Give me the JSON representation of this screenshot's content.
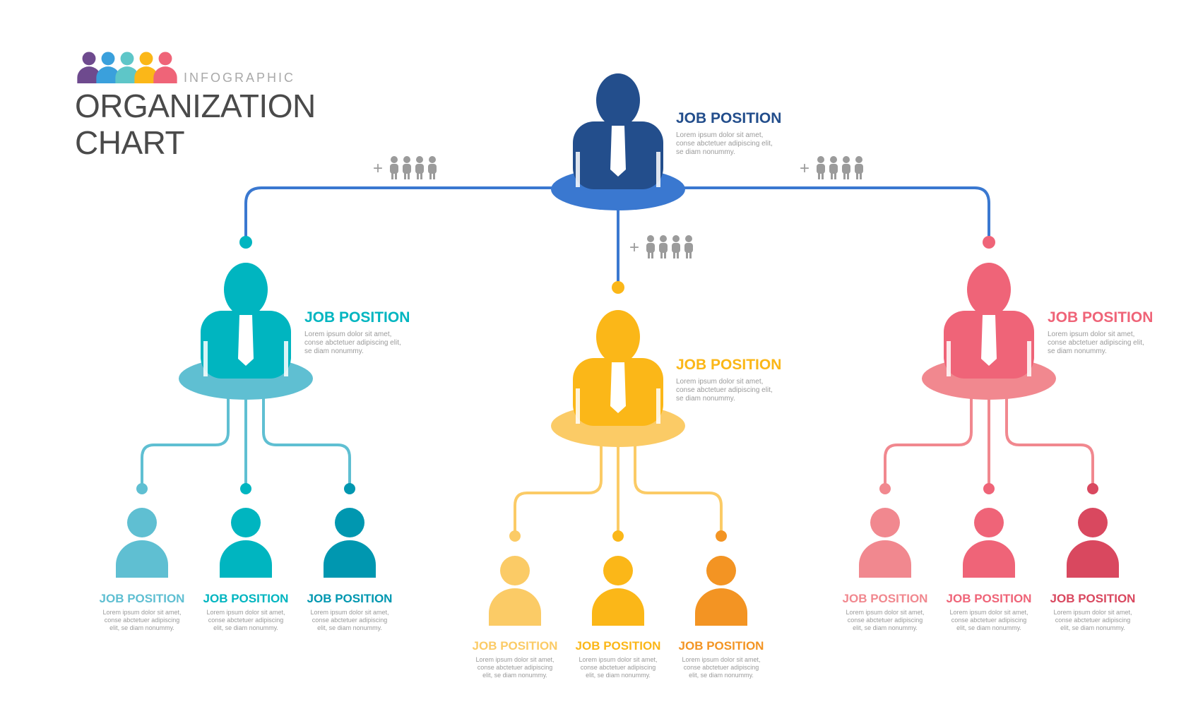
{
  "brand": {
    "subtitle": "INFOGRAPHIC",
    "title_line1": "ORGANIZATION",
    "title_line2": "CHART"
  },
  "colors": {
    "navy": "#234e8c",
    "blue_line": "#3a78d0",
    "teal": "#00b5c0",
    "teal_light": "#5fbfd2",
    "teal_dark": "#0097b0",
    "yellow": "#fbb718",
    "yellow_light": "#fbcb66",
    "orange": "#f39423",
    "pink": "#ef6478",
    "pink_light": "#f1888f",
    "red": "#d9485f",
    "gray_icon": "#9b9b9b",
    "team_purple": "#6e4a8e"
  },
  "plus_sign": "+",
  "nodes": {
    "top": {
      "title": "JOB POSITION",
      "desc": "Lorem ipsum dolor sit amet, conse abctetuer adipiscing elit, se diam nonummy."
    },
    "left": {
      "title": "JOB POSITION",
      "desc": "Lorem ipsum dolor sit amet, conse abctetuer adipiscing elit, se diam nonummy."
    },
    "middle": {
      "title": "JOB POSITION",
      "desc": "Lorem ipsum dolor sit amet, conse abctetuer adipiscing elit, se diam nonummy."
    },
    "right": {
      "title": "JOB POSITION",
      "desc": "Lorem ipsum dolor sit amet, conse abctetuer adipiscing elit, se diam nonummy."
    }
  },
  "leaves": {
    "left": [
      {
        "title": "JOB POSITION",
        "desc": "Lorem ipsum dolor sit amet, conse abctetuer adipiscing elit, se diam nonummy."
      },
      {
        "title": "JOB POSITION",
        "desc": "Lorem ipsum dolor sit amet, conse abctetuer adipiscing elit, se diam nonummy."
      },
      {
        "title": "JOB POSITION",
        "desc": "Lorem ipsum dolor sit amet, conse abctetuer adipiscing elit, se diam nonummy."
      }
    ],
    "middle": [
      {
        "title": "JOB POSITION",
        "desc": "Lorem ipsum dolor sit amet, conse abctetuer adipiscing elit, se diam nonummy."
      },
      {
        "title": "JOB POSITION",
        "desc": "Lorem ipsum dolor sit amet, conse abctetuer adipiscing elit, se diam nonummy."
      },
      {
        "title": "JOB POSITION",
        "desc": "Lorem ipsum dolor sit amet, conse abctetuer adipiscing elit, se diam nonummy."
      }
    ],
    "right": [
      {
        "title": "JOB POSITION",
        "desc": "Lorem ipsum dolor sit amet, conse abctetuer adipiscing elit, se diam nonummy."
      },
      {
        "title": "JOB POSITION",
        "desc": "Lorem ipsum dolor sit amet, conse abctetuer adipiscing elit, se diam nonummy."
      },
      {
        "title": "JOB POSITION",
        "desc": "Lorem ipsum dolor sit amet, conse abctetuer adipiscing elit, se diam nonummy."
      }
    ]
  }
}
